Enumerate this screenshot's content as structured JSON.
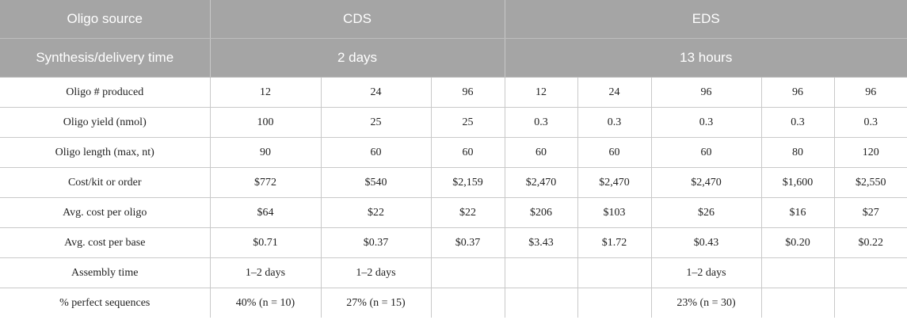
{
  "header": {
    "row1": {
      "label": "Oligo source",
      "cds": "CDS",
      "eds": "EDS"
    },
    "row2": {
      "label": "Synthesis/delivery time",
      "cds": "2 days",
      "eds": "13 hours"
    }
  },
  "rows": [
    {
      "label": "Oligo # produced",
      "cells": [
        "12",
        "24",
        "96",
        "12",
        "24",
        "96",
        "96",
        "96"
      ]
    },
    {
      "label": "Oligo yield (nmol)",
      "cells": [
        "100",
        "25",
        "25",
        "0.3",
        "0.3",
        "0.3",
        "0.3",
        "0.3"
      ]
    },
    {
      "label": "Oligo length (max, nt)",
      "cells": [
        "90",
        "60",
        "60",
        "60",
        "60",
        "60",
        "80",
        "120"
      ]
    },
    {
      "label": "Cost/kit or order",
      "cells": [
        "$772",
        "$540",
        "$2,159",
        "$2,470",
        "$2,470",
        "$2,470",
        "$1,600",
        "$2,550"
      ]
    },
    {
      "label": "Avg. cost per oligo",
      "cells": [
        "$64",
        "$22",
        "$22",
        "$206",
        "$103",
        "$26",
        "$16",
        "$27"
      ]
    },
    {
      "label": "Avg. cost per base",
      "cells": [
        "$0.71",
        "$0.37",
        "$0.37",
        "$3.43",
        "$1.72",
        "$0.43",
        "$0.20",
        "$0.22"
      ]
    },
    {
      "label": "Assembly time",
      "cells": [
        "1–2 days",
        "1–2 days",
        "",
        "",
        "",
        "1–2 days",
        "",
        ""
      ]
    },
    {
      "label": "% perfect sequences",
      "cells": [
        "40% (n = 10)",
        "27% (n = 15)",
        "",
        "",
        "",
        "23% (n = 30)",
        "",
        ""
      ]
    }
  ]
}
